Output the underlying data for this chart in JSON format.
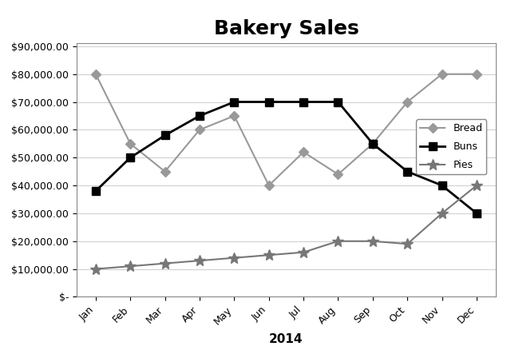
{
  "title": "Bakery Sales",
  "xlabel": "2014",
  "months": [
    "Jan",
    "Feb",
    "Mar",
    "Apr",
    "May",
    "Jun",
    "Jul",
    "Aug",
    "Sep",
    "Oct",
    "Nov",
    "Dec"
  ],
  "bread": [
    80000,
    55000,
    45000,
    60000,
    65000,
    40000,
    52000,
    44000,
    55000,
    70000,
    80000,
    80000
  ],
  "buns": [
    38000,
    50000,
    58000,
    65000,
    70000,
    70000,
    70000,
    70000,
    55000,
    45000,
    40000,
    30000
  ],
  "pies": [
    10000,
    11000,
    12000,
    13000,
    14000,
    15000,
    16000,
    20000,
    20000,
    19000,
    30000,
    40000
  ],
  "bread_color": "#999999",
  "buns_color": "#000000",
  "pies_color": "#777777",
  "ylim_min": 0,
  "ylim_max": 90000,
  "ytick_step": 10000,
  "title_fontsize": 18,
  "xlabel_fontsize": 11,
  "tick_fontsize": 9,
  "legend_labels": [
    "Bread",
    "Buns",
    "Pies"
  ],
  "background_color": "#ffffff",
  "border_color": "#aaaaaa"
}
